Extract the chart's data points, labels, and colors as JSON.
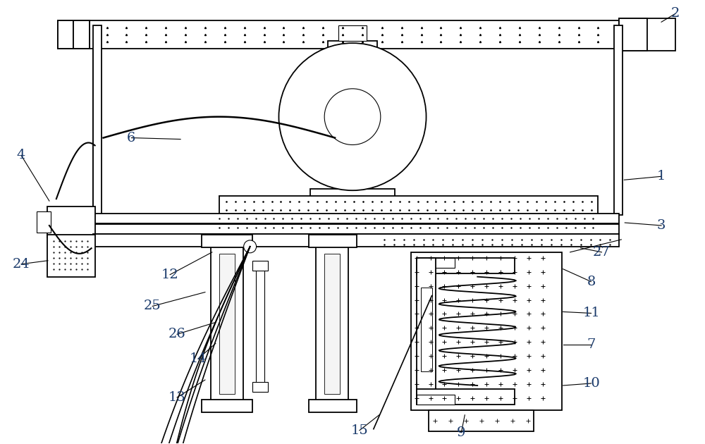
{
  "bg_color": "#ffffff",
  "line_color": "#000000",
  "label_color": "#1a3a6b",
  "fig_width": 10.0,
  "fig_height": 6.3,
  "dpi": 100
}
